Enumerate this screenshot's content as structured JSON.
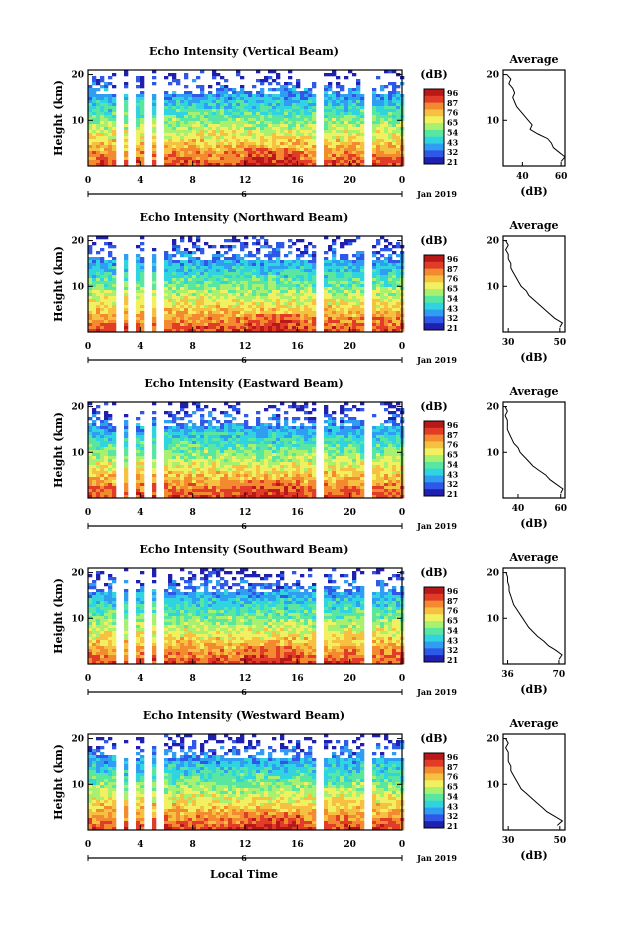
{
  "xlabel": "Local Time",
  "colorbar_unit": "(dB)",
  "colorbar_ticks": [
    "96",
    "87",
    "76",
    "65",
    "54",
    "43",
    "32",
    "21"
  ],
  "colormap": [
    "#2020b0",
    "#2f58e8",
    "#2f9ef2",
    "#30d4e0",
    "#58e6a0",
    "#a8f070",
    "#f0f060",
    "#f6c040",
    "#f48a30",
    "#e03c28",
    "#b81818"
  ],
  "date_label": "Jan 2019",
  "date_marker": "6",
  "chart_data": [
    {
      "type": "heatmap",
      "title": "Echo Intensity (Vertical Beam)",
      "ylabel": "Height (km)",
      "x_ticks": [
        "0",
        "4",
        "8",
        "12",
        "16",
        "20",
        "0"
      ],
      "y_ticks": [
        "20",
        "10"
      ],
      "avg_title": "Average",
      "avg_xlabel": "(dB)",
      "avg_xticks": [
        "40",
        "60"
      ],
      "avg_xlim": [
        30,
        62
      ],
      "avg_profile": [
        [
          1,
          60
        ],
        [
          2,
          62
        ],
        [
          3,
          59
        ],
        [
          4,
          56
        ],
        [
          5,
          55
        ],
        [
          6,
          53
        ],
        [
          7,
          48
        ],
        [
          8,
          44
        ],
        [
          9,
          45
        ],
        [
          10,
          43
        ],
        [
          11,
          41
        ],
        [
          12,
          39
        ],
        [
          13,
          37
        ],
        [
          14,
          36
        ],
        [
          15,
          35
        ],
        [
          16,
          36
        ],
        [
          17,
          35
        ],
        [
          18,
          33
        ],
        [
          19,
          34
        ],
        [
          20,
          32
        ]
      ]
    },
    {
      "type": "heatmap",
      "title": "Echo Intensity (Northward Beam)",
      "ylabel": "Height (km)",
      "x_ticks": [
        "0",
        "4",
        "8",
        "12",
        "16",
        "20",
        "0"
      ],
      "y_ticks": [
        "20",
        "10"
      ],
      "avg_title": "Average",
      "avg_xlabel": "(dB)",
      "avg_xticks": [
        "30",
        "50"
      ],
      "avg_xlim": [
        28,
        52
      ],
      "avg_profile": [
        [
          1,
          50
        ],
        [
          2,
          51
        ],
        [
          3,
          48
        ],
        [
          4,
          46
        ],
        [
          5,
          44
        ],
        [
          6,
          42
        ],
        [
          7,
          40
        ],
        [
          8,
          38
        ],
        [
          9,
          37
        ],
        [
          10,
          35
        ],
        [
          11,
          34
        ],
        [
          12,
          33
        ],
        [
          13,
          32
        ],
        [
          14,
          31
        ],
        [
          15,
          31
        ],
        [
          16,
          30
        ],
        [
          17,
          30
        ],
        [
          18,
          29
        ],
        [
          19,
          30
        ],
        [
          20,
          29
        ]
      ]
    },
    {
      "type": "heatmap",
      "title": "Echo Intensity (Eastward Beam)",
      "ylabel": "Height (km)",
      "x_ticks": [
        "0",
        "4",
        "8",
        "12",
        "16",
        "20",
        "0"
      ],
      "y_ticks": [
        "20",
        "10"
      ],
      "avg_title": "Average",
      "avg_xlabel": "(dB)",
      "avg_xticks": [
        "40",
        "60"
      ],
      "avg_xlim": [
        33,
        62
      ],
      "avg_profile": [
        [
          1,
          60
        ],
        [
          2,
          61
        ],
        [
          3,
          58
        ],
        [
          4,
          55
        ],
        [
          5,
          53
        ],
        [
          6,
          50
        ],
        [
          7,
          47
        ],
        [
          8,
          45
        ],
        [
          9,
          43
        ],
        [
          10,
          41
        ],
        [
          11,
          40
        ],
        [
          12,
          38
        ],
        [
          13,
          37
        ],
        [
          14,
          36
        ],
        [
          15,
          35
        ],
        [
          16,
          35
        ],
        [
          17,
          35
        ],
        [
          18,
          34
        ],
        [
          19,
          35
        ],
        [
          20,
          34
        ]
      ]
    },
    {
      "type": "heatmap",
      "title": "Echo Intensity (Southward Beam)",
      "ylabel": "Height (km)",
      "x_ticks": [
        "0",
        "4",
        "8",
        "12",
        "16",
        "20",
        "0"
      ],
      "y_ticks": [
        "20",
        "10"
      ],
      "avg_title": "Average",
      "avg_xlabel": "(dB)",
      "avg_xticks": [
        "36",
        "70"
      ],
      "avg_xlim": [
        33,
        74
      ],
      "avg_profile": [
        [
          1,
          70
        ],
        [
          2,
          72
        ],
        [
          3,
          68
        ],
        [
          4,
          63
        ],
        [
          5,
          60
        ],
        [
          6,
          56
        ],
        [
          7,
          53
        ],
        [
          8,
          50
        ],
        [
          9,
          48
        ],
        [
          10,
          46
        ],
        [
          11,
          44
        ],
        [
          12,
          42
        ],
        [
          13,
          40
        ],
        [
          14,
          39
        ],
        [
          15,
          38
        ],
        [
          16,
          37
        ],
        [
          17,
          37
        ],
        [
          18,
          36
        ],
        [
          19,
          36
        ],
        [
          20,
          35
        ]
      ]
    },
    {
      "type": "heatmap",
      "title": "Echo Intensity (Westward Beam)",
      "ylabel": "Height (km)",
      "x_ticks": [
        "0",
        "4",
        "8",
        "12",
        "16",
        "20",
        "0"
      ],
      "y_ticks": [
        "20",
        "10"
      ],
      "avg_title": "Average",
      "avg_xlabel": "(dB)",
      "avg_xticks": [
        "30",
        "50"
      ],
      "avg_xlim": [
        28,
        52
      ],
      "avg_profile": [
        [
          1,
          49
        ],
        [
          2,
          51
        ],
        [
          3,
          48
        ],
        [
          4,
          45
        ],
        [
          5,
          43
        ],
        [
          6,
          41
        ],
        [
          7,
          39
        ],
        [
          8,
          37
        ],
        [
          9,
          35
        ],
        [
          10,
          34
        ],
        [
          11,
          33
        ],
        [
          12,
          32
        ],
        [
          13,
          31
        ],
        [
          14,
          31
        ],
        [
          15,
          30
        ],
        [
          16,
          30
        ],
        [
          17,
          30
        ],
        [
          18,
          29
        ],
        [
          19,
          30
        ],
        [
          20,
          29
        ]
      ]
    }
  ]
}
